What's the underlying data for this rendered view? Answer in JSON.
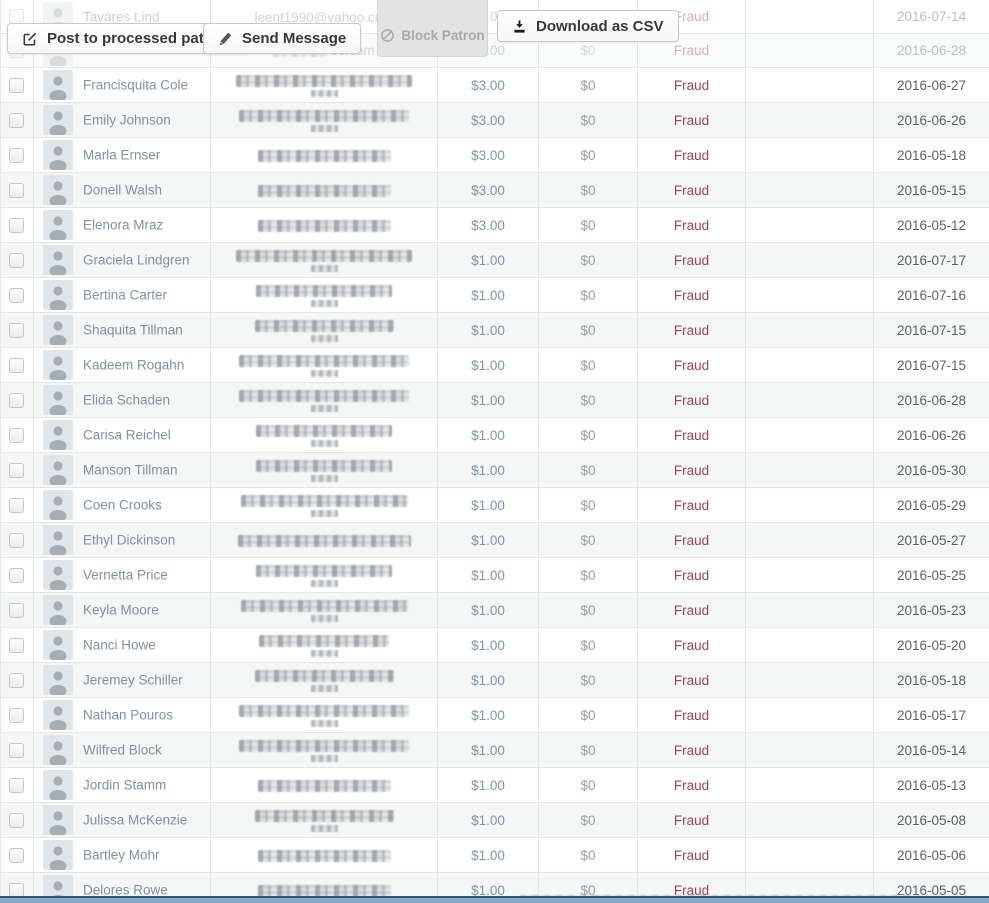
{
  "toolbar": {
    "post_label": "Post to processed patrons",
    "send_label": "Send Message",
    "block_label": "Block Patron",
    "download_label": "Download as CSV"
  },
  "table": {
    "faded_rows": [
      {
        "name": "Tavares Lind",
        "email_text": "leent1990@yahoo.com",
        "pledge": "$3.00",
        "lifetime": "$0",
        "status": "Fraud",
        "date": "2016-07-14"
      },
      {
        "name": "",
        "email_tail": "oo.com",
        "pledge": "$3.00",
        "lifetime": "$0",
        "status": "Fraud",
        "date": "2016-06-28"
      }
    ],
    "rows": [
      {
        "name": "Francisquita Cole",
        "pledge": "$3.00",
        "lifetime": "$0",
        "status": "Fraud",
        "date": "2016-06-27"
      },
      {
        "name": "Emily Johnson",
        "pledge": "$3.00",
        "lifetime": "$0",
        "status": "Fraud",
        "date": "2016-06-26"
      },
      {
        "name": "Marla Ernser",
        "pledge": "$3.00",
        "lifetime": "$0",
        "status": "Fraud",
        "date": "2016-05-18"
      },
      {
        "name": "Donell Walsh",
        "pledge": "$3.00",
        "lifetime": "$0",
        "status": "Fraud",
        "date": "2016-05-15"
      },
      {
        "name": "Elenora Mraz",
        "pledge": "$3.00",
        "lifetime": "$0",
        "status": "Fraud",
        "date": "2016-05-12"
      },
      {
        "name": "Graciela Lindgren",
        "pledge": "$1.00",
        "lifetime": "$0",
        "status": "Fraud",
        "date": "2016-07-17"
      },
      {
        "name": "Bertina Carter",
        "pledge": "$1.00",
        "lifetime": "$0",
        "status": "Fraud",
        "date": "2016-07-16"
      },
      {
        "name": "Shaquita Tillman",
        "pledge": "$1.00",
        "lifetime": "$0",
        "status": "Fraud",
        "date": "2016-07-15"
      },
      {
        "name": "Kadeem Rogahn",
        "pledge": "$1.00",
        "lifetime": "$0",
        "status": "Fraud",
        "date": "2016-07-15"
      },
      {
        "name": "Elida Schaden",
        "pledge": "$1.00",
        "lifetime": "$0",
        "status": "Fraud",
        "date": "2016-06-28"
      },
      {
        "name": "Carisa Reichel",
        "pledge": "$1.00",
        "lifetime": "$0",
        "status": "Fraud",
        "date": "2016-06-26"
      },
      {
        "name": "Manson Tillman",
        "pledge": "$1.00",
        "lifetime": "$0",
        "status": "Fraud",
        "date": "2016-05-30"
      },
      {
        "name": "Coen Crooks",
        "pledge": "$1.00",
        "lifetime": "$0",
        "status": "Fraud",
        "date": "2016-05-29"
      },
      {
        "name": "Ethyl Dickinson",
        "pledge": "$1.00",
        "lifetime": "$0",
        "status": "Fraud",
        "date": "2016-05-27"
      },
      {
        "name": "Vernetta Price",
        "pledge": "$1.00",
        "lifetime": "$0",
        "status": "Fraud",
        "date": "2016-05-25"
      },
      {
        "name": "Keyla Moore",
        "pledge": "$1.00",
        "lifetime": "$0",
        "status": "Fraud",
        "date": "2016-05-23"
      },
      {
        "name": "Nanci Howe",
        "pledge": "$1.00",
        "lifetime": "$0",
        "status": "Fraud",
        "date": "2016-05-20"
      },
      {
        "name": "Jeremey Schiller",
        "pledge": "$1.00",
        "lifetime": "$0",
        "status": "Fraud",
        "date": "2016-05-18"
      },
      {
        "name": "Nathan Pouros",
        "pledge": "$1.00",
        "lifetime": "$0",
        "status": "Fraud",
        "date": "2016-05-17"
      },
      {
        "name": "Wilfred Block",
        "pledge": "$1.00",
        "lifetime": "$0",
        "status": "Fraud",
        "date": "2016-05-14"
      },
      {
        "name": "Jordin Stamm",
        "pledge": "$1.00",
        "lifetime": "$0",
        "status": "Fraud",
        "date": "2016-05-13"
      },
      {
        "name": "Julissa McKenzie",
        "pledge": "$1.00",
        "lifetime": "$0",
        "status": "Fraud",
        "date": "2016-05-08"
      },
      {
        "name": "Bartley Mohr",
        "pledge": "$1.00",
        "lifetime": "$0",
        "status": "Fraud",
        "date": "2016-05-06"
      },
      {
        "name": "Delores Rowe",
        "pledge": "$1.00",
        "lifetime": "$0",
        "status": "Fraud",
        "date": "2016-05-05"
      }
    ]
  },
  "colors": {
    "link_blue": "#7e91a5",
    "amount_blue": "#7b96ab",
    "muted_gray": "#97a0a6",
    "fraud_red": "#9e4452",
    "date_gray": "#5d6166",
    "bottom_bar_blue": "#87a8c5",
    "disabled_panel_gray": "#e3e3e3"
  }
}
